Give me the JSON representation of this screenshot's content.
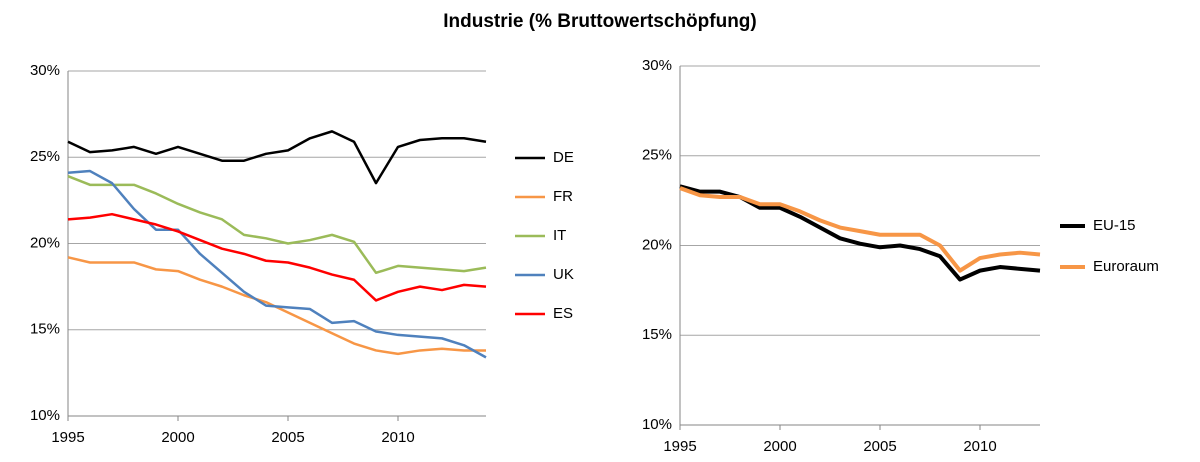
{
  "title": "Industrie (% Bruttowertschöpfung)",
  "chart_data": [
    {
      "type": "line",
      "x": [
        1995,
        1996,
        1997,
        1998,
        1999,
        2000,
        2001,
        2002,
        2003,
        2004,
        2005,
        2006,
        2007,
        2008,
        2009,
        2010,
        2011,
        2012,
        2013,
        2014
      ],
      "xlim": [
        1995,
        2014
      ],
      "xticks": [
        1995,
        2000,
        2005,
        2010
      ],
      "ylim": [
        10,
        30
      ],
      "yticks": [
        {
          "value": 10,
          "label": "10%"
        },
        {
          "value": 15,
          "label": "15%"
        },
        {
          "value": 20,
          "label": "20%"
        },
        {
          "value": 25,
          "label": "25%"
        },
        {
          "value": 30,
          "label": "30%"
        }
      ],
      "grid": true,
      "legend": "right",
      "series": [
        {
          "name": "DE",
          "color": "#000000",
          "values": [
            25.9,
            25.3,
            25.4,
            25.6,
            25.2,
            25.6,
            25.2,
            24.8,
            24.8,
            25.2,
            25.4,
            26.1,
            26.5,
            25.9,
            23.5,
            25.6,
            26.0,
            26.1,
            26.1,
            25.9
          ]
        },
        {
          "name": "FR",
          "color": "#f79646",
          "values": [
            19.2,
            18.9,
            18.9,
            18.9,
            18.5,
            18.4,
            17.9,
            17.5,
            17.0,
            16.6,
            16.0,
            15.4,
            14.8,
            14.2,
            13.8,
            13.6,
            13.8,
            13.9,
            13.8,
            13.8
          ]
        },
        {
          "name": "IT",
          "color": "#9bbb59",
          "values": [
            23.9,
            23.4,
            23.4,
            23.4,
            22.9,
            22.3,
            21.8,
            21.4,
            20.5,
            20.3,
            20.0,
            20.2,
            20.5,
            20.1,
            18.3,
            18.7,
            18.6,
            18.5,
            18.4,
            18.6
          ]
        },
        {
          "name": "UK",
          "color": "#4f81bd",
          "values": [
            24.1,
            24.2,
            23.5,
            22.0,
            20.8,
            20.8,
            19.4,
            18.3,
            17.2,
            16.4,
            16.3,
            16.2,
            15.4,
            15.5,
            14.9,
            14.7,
            14.6,
            14.5,
            14.1,
            13.4
          ]
        },
        {
          "name": "ES",
          "color": "#ff0000",
          "values": [
            21.4,
            21.5,
            21.7,
            21.4,
            21.1,
            20.7,
            20.2,
            19.7,
            19.4,
            19.0,
            18.9,
            18.6,
            18.2,
            17.9,
            16.7,
            17.2,
            17.5,
            17.3,
            17.6,
            17.5
          ]
        }
      ]
    },
    {
      "type": "line",
      "x": [
        1995,
        1996,
        1997,
        1998,
        1999,
        2000,
        2001,
        2002,
        2003,
        2004,
        2005,
        2006,
        2007,
        2008,
        2009,
        2010,
        2011,
        2012,
        2013
      ],
      "xlim": [
        1995,
        2013
      ],
      "xticks": [
        1995,
        2000,
        2005,
        2010
      ],
      "ylim": [
        10,
        30
      ],
      "yticks": [
        {
          "value": 10,
          "label": "10%"
        },
        {
          "value": 15,
          "label": "15%"
        },
        {
          "value": 20,
          "label": "20%"
        },
        {
          "value": 25,
          "label": "25%"
        },
        {
          "value": 30,
          "label": "30%"
        }
      ],
      "grid": true,
      "legend": "right",
      "series": [
        {
          "name": "EU-15",
          "color": "#000000",
          "values": [
            23.3,
            23.0,
            23.0,
            22.7,
            22.1,
            22.1,
            21.6,
            21.0,
            20.4,
            20.1,
            19.9,
            20.0,
            19.8,
            19.4,
            18.1,
            18.6,
            18.8,
            18.7,
            18.6
          ]
        },
        {
          "name": "Euroraum",
          "color": "#f79646",
          "values": [
            23.2,
            22.8,
            22.7,
            22.7,
            22.3,
            22.3,
            21.9,
            21.4,
            21.0,
            20.8,
            20.6,
            20.6,
            20.6,
            20.0,
            18.6,
            19.3,
            19.5,
            19.6,
            19.5
          ]
        }
      ]
    }
  ]
}
